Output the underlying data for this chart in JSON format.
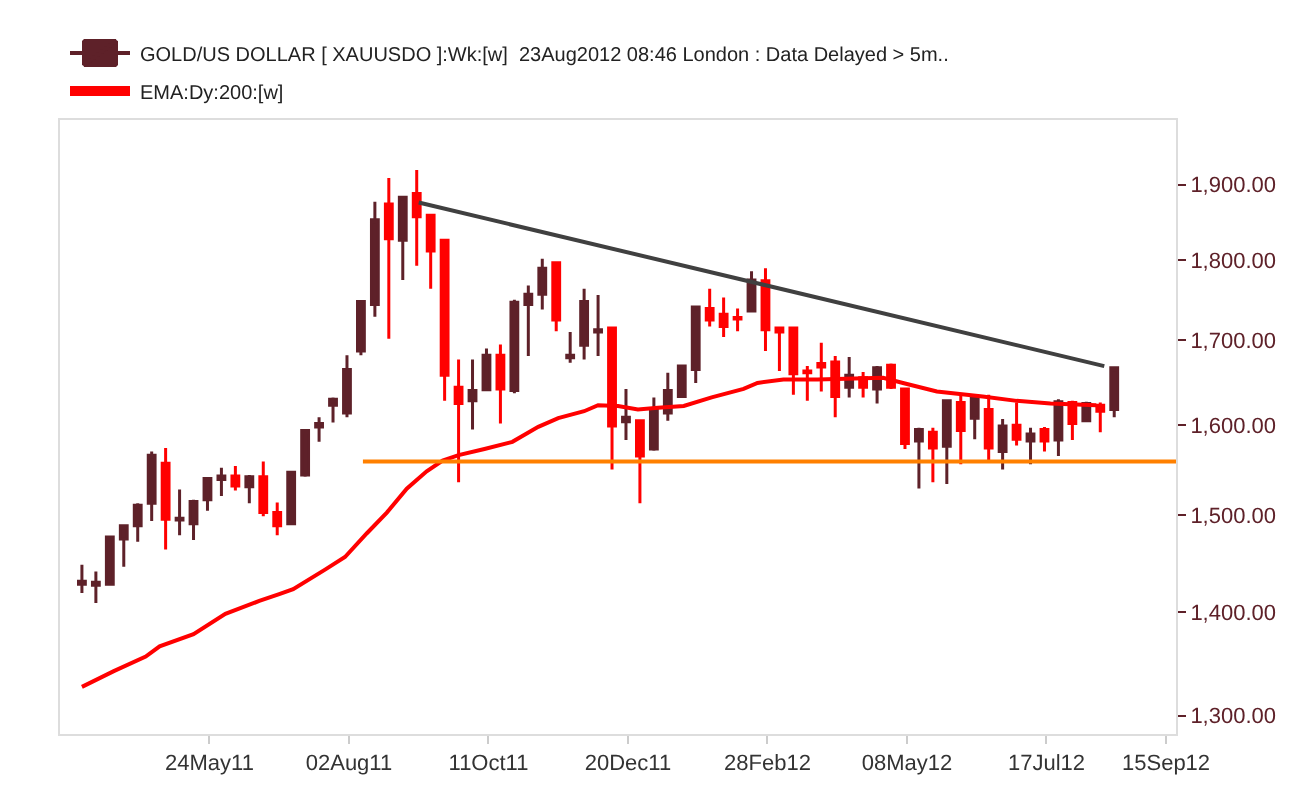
{
  "chart_data": {
    "type": "candlestick",
    "x": [
      "2011-03-21",
      "2011-03-28",
      "2011-04-04",
      "2011-04-11",
      "2011-04-18",
      "2011-04-25",
      "2011-05-02",
      "2011-05-09",
      "2011-05-16",
      "2011-05-23",
      "2011-05-30",
      "2011-06-06",
      "2011-06-13",
      "2011-06-20",
      "2011-06-27",
      "2011-07-04",
      "2011-07-11",
      "2011-07-18",
      "2011-07-25",
      "2011-08-01",
      "2011-08-08",
      "2011-08-15",
      "2011-08-22",
      "2011-08-29",
      "2011-09-05",
      "2011-09-12",
      "2011-09-19",
      "2011-09-26",
      "2011-10-03",
      "2011-10-10",
      "2011-10-17",
      "2011-10-24",
      "2011-10-31",
      "2011-11-07",
      "2011-11-14",
      "2011-11-21",
      "2011-11-28",
      "2011-12-05",
      "2011-12-12",
      "2011-12-19",
      "2011-12-26",
      "2012-01-02",
      "2012-01-09",
      "2012-01-16",
      "2012-01-23",
      "2012-01-30",
      "2012-02-06",
      "2012-02-13",
      "2012-02-20",
      "2012-02-27",
      "2012-03-05",
      "2012-03-12",
      "2012-03-19",
      "2012-03-26",
      "2012-04-02",
      "2012-04-09",
      "2012-04-16",
      "2012-04-23",
      "2012-04-30",
      "2012-05-07",
      "2012-05-14",
      "2012-05-21",
      "2012-05-28",
      "2012-06-04",
      "2012-06-11",
      "2012-06-18",
      "2012-06-25",
      "2012-07-02",
      "2012-07-09",
      "2012-07-16",
      "2012-07-23",
      "2012-07-30",
      "2012-08-06",
      "2012-08-13",
      "2012-08-20"
    ],
    "series": [
      {
        "name": "GOLD/US DOLLAR [ XAUUSDO ]:Wk:[w]  23Aug2012 08:46 London : Data Delayed > 5m..",
        "color": "#5e2129",
        "ohlc": [
          [
            1428,
            1448,
            1419,
            1431
          ],
          [
            1427,
            1441,
            1409,
            1430
          ],
          [
            1428,
            1477,
            1428,
            1477
          ],
          [
            1475,
            1489,
            1446,
            1489
          ],
          [
            1489,
            1513,
            1472,
            1511
          ],
          [
            1513,
            1570,
            1494,
            1566
          ],
          [
            1557,
            1574,
            1464,
            1496
          ],
          [
            1495,
            1528,
            1479,
            1497
          ],
          [
            1491,
            1517,
            1474,
            1515
          ],
          [
            1517,
            1540,
            1505,
            1540
          ],
          [
            1539,
            1552,
            1521,
            1543
          ],
          [
            1543,
            1554,
            1527,
            1532
          ],
          [
            1531,
            1544,
            1513,
            1542
          ],
          [
            1542,
            1559,
            1499,
            1503
          ],
          [
            1503,
            1514,
            1479,
            1489
          ],
          [
            1491,
            1547,
            1491,
            1547
          ],
          [
            1544,
            1594,
            1542,
            1594
          ],
          [
            1598,
            1609,
            1581,
            1602
          ],
          [
            1623,
            1632,
            1603,
            1630
          ],
          [
            1614,
            1682,
            1609,
            1665
          ],
          [
            1687,
            1748,
            1682,
            1748
          ],
          [
            1744,
            1877,
            1729,
            1853
          ],
          [
            1874,
            1909,
            1702,
            1828
          ],
          [
            1826,
            1883,
            1775,
            1883
          ],
          [
            1888,
            1920,
            1793,
            1857
          ],
          [
            1859,
            1859,
            1764,
            1812
          ],
          [
            1826,
            1826,
            1628,
            1658
          ],
          [
            1644,
            1677,
            1536,
            1625
          ],
          [
            1628,
            1677,
            1595,
            1640
          ],
          [
            1641,
            1690,
            1641,
            1682
          ],
          [
            1682,
            1695,
            1602,
            1642
          ],
          [
            1640,
            1750,
            1637,
            1747
          ],
          [
            1744,
            1768,
            1681,
            1757
          ],
          [
            1757,
            1802,
            1738,
            1790
          ],
          [
            1797,
            1797,
            1711,
            1725
          ],
          [
            1679,
            1710,
            1673,
            1682
          ],
          [
            1694,
            1764,
            1677,
            1748
          ],
          [
            1710,
            1756,
            1681,
            1713
          ],
          [
            1715,
            1715,
            1550,
            1599
          ],
          [
            1604,
            1642,
            1583,
            1609
          ],
          [
            1605,
            1605,
            1513,
            1565
          ],
          [
            1573,
            1632,
            1571,
            1619
          ],
          [
            1614,
            1661,
            1605,
            1640
          ],
          [
            1633,
            1669,
            1632,
            1669
          ],
          [
            1665,
            1741,
            1649,
            1741
          ],
          [
            1739,
            1764,
            1717,
            1725
          ],
          [
            1732,
            1753,
            1704,
            1717
          ],
          [
            1728,
            1739,
            1711,
            1726
          ],
          [
            1736,
            1786,
            1736,
            1775
          ],
          [
            1774,
            1790,
            1687,
            1713
          ],
          [
            1715,
            1715,
            1663,
            1710
          ],
          [
            1715,
            1715,
            1635,
            1660
          ],
          [
            1663,
            1669,
            1628,
            1661
          ],
          [
            1672,
            1697,
            1639,
            1668
          ],
          [
            1674,
            1681,
            1609,
            1633
          ],
          [
            1644,
            1680,
            1632,
            1658
          ],
          [
            1655,
            1662,
            1632,
            1644
          ],
          [
            1642,
            1669,
            1625,
            1667
          ],
          [
            1670,
            1672,
            1642,
            1644
          ],
          [
            1642,
            1642,
            1573,
            1579
          ],
          [
            1582,
            1597,
            1529,
            1595
          ],
          [
            1592,
            1597,
            1536,
            1574
          ],
          [
            1576,
            1630,
            1534,
            1628
          ],
          [
            1626,
            1637,
            1556,
            1594
          ],
          [
            1608,
            1635,
            1584,
            1632
          ],
          [
            1618,
            1635,
            1560,
            1574
          ],
          [
            1570,
            1607,
            1550,
            1599
          ],
          [
            1600,
            1626,
            1577,
            1584
          ],
          [
            1582,
            1597,
            1556,
            1590
          ],
          [
            1595,
            1598,
            1570,
            1582
          ],
          [
            1583,
            1630,
            1565,
            1627
          ],
          [
            1626,
            1628,
            1583,
            1602
          ],
          [
            1605,
            1627,
            1604,
            1625
          ],
          [
            1623,
            1626,
            1592,
            1616
          ],
          [
            1618,
            1667,
            1609,
            1667
          ]
        ],
        "colors": [
          "#5e2129",
          "#5e2129",
          "#5e2129",
          "#5e2129",
          "#5e2129",
          "#5e2129",
          "#ff0000",
          "#5e2129",
          "#5e2129",
          "#5e2129",
          "#5e2129",
          "#ff0000",
          "#5e2129",
          "#ff0000",
          "#ff0000",
          "#5e2129",
          "#5e2129",
          "#5e2129",
          "#5e2129",
          "#5e2129",
          "#5e2129",
          "#5e2129",
          "#ff0000",
          "#5e2129",
          "#ff0000",
          "#ff0000",
          "#ff0000",
          "#ff0000",
          "#5e2129",
          "#5e2129",
          "#ff0000",
          "#5e2129",
          "#5e2129",
          "#5e2129",
          "#ff0000",
          "#5e2129",
          "#5e2129",
          "#5e2129",
          "#ff0000",
          "#5e2129",
          "#ff0000",
          "#5e2129",
          "#5e2129",
          "#5e2129",
          "#5e2129",
          "#ff0000",
          "#ff0000",
          "#ff0000",
          "#5e2129",
          "#ff0000",
          "#ff0000",
          "#ff0000",
          "#ff0000",
          "#ff0000",
          "#ff0000",
          "#5e2129",
          "#ff0000",
          "#5e2129",
          "#ff0000",
          "#ff0000",
          "#5e2129",
          "#ff0000",
          "#5e2129",
          "#ff0000",
          "#5e2129",
          "#ff0000",
          "#5e2129",
          "#ff0000",
          "#5e2129",
          "#ff0000",
          "#5e2129",
          "#ff0000",
          "#5e2129",
          "#ff0000",
          "#5e2129"
        ]
      },
      {
        "name": "EMA:Dy:200:[w]",
        "color": "#ff0000",
        "type": "line",
        "x": [
          "2011-03-21",
          "2011-04-06",
          "2011-04-22",
          "2011-04-29",
          "2011-05-16",
          "2011-06-01",
          "2011-06-18",
          "2011-06-28",
          "2011-07-05",
          "2011-07-21",
          "2011-07-31",
          "2011-08-11",
          "2011-08-21",
          "2011-08-31",
          "2011-09-10",
          "2011-09-18",
          "2011-09-26",
          "2011-10-09",
          "2011-10-23",
          "2011-11-05",
          "2011-11-15",
          "2011-11-28",
          "2011-12-05",
          "2011-12-15",
          "2011-12-25",
          "2012-01-04",
          "2012-01-17",
          "2012-01-31",
          "2012-02-16",
          "2012-02-23",
          "2012-03-07",
          "2012-03-24",
          "2012-04-26",
          "2012-05-06",
          "2012-05-23",
          "2012-06-15",
          "2012-07-02",
          "2012-07-19",
          "2012-08-11"
        ],
        "values": [
          1327,
          1342,
          1356,
          1366,
          1378,
          1398,
          1411,
          1418,
          1423,
          1443,
          1456,
          1481,
          1503,
          1529,
          1548,
          1560,
          1566,
          1573,
          1581,
          1598,
          1608,
          1616,
          1623,
          1622,
          1618,
          1620,
          1622,
          1632,
          1642,
          1649,
          1653,
          1653,
          1655,
          1649,
          1639,
          1633,
          1628,
          1625,
          1623
        ]
      },
      {
        "color": "#404040",
        "type": "line",
        "x": [
          "2011-09-06",
          "2012-08-15"
        ],
        "values": [
          1876,
          1669
        ]
      },
      {
        "color": "#ff8000",
        "type": "line",
        "x": [
          "2011-08-09",
          "2012-09-20"
        ],
        "values": [
          1559,
          1559
        ]
      }
    ],
    "log": true,
    "xlim": [
      "2011-03-10",
      "2012-09-20"
    ],
    "xticks": [
      {
        "value": "2011-05-24",
        "label": "24May11"
      },
      {
        "value": "2011-08-02",
        "label": "02Aug11"
      },
      {
        "value": "2011-10-11",
        "label": "11Oct11"
      },
      {
        "value": "2011-12-20",
        "label": "20Dec11"
      },
      {
        "value": "2012-02-28",
        "label": "28Feb12"
      },
      {
        "value": "2012-05-08",
        "label": "08May12"
      },
      {
        "value": "2012-07-17",
        "label": "17Jul12"
      },
      {
        "value": "2012-09-15",
        "label": "15Sep12"
      }
    ],
    "ylim": [
      1283,
      1990
    ],
    "yticks": [
      {
        "value": 1300,
        "label": "1,300.00"
      },
      {
        "value": 1400,
        "label": "1,400.00"
      },
      {
        "value": 1500,
        "label": "1,500.00"
      },
      {
        "value": 1600,
        "label": "1,600.00"
      },
      {
        "value": 1700,
        "label": "1,700.00"
      },
      {
        "value": 1800,
        "label": "1,800.00"
      },
      {
        "value": 1900,
        "label": "1,900.00"
      }
    ],
    "legend": "top left"
  }
}
